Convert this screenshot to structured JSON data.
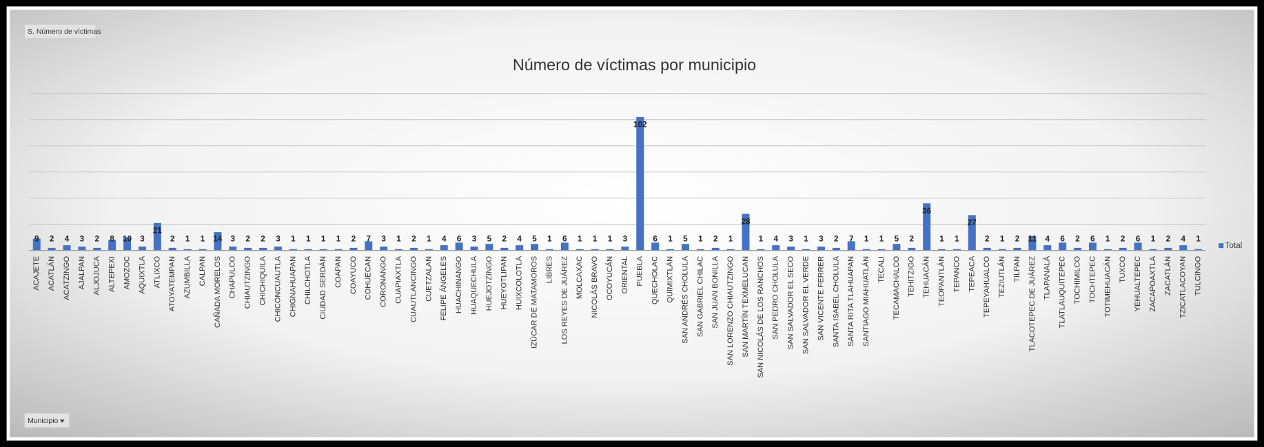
{
  "chart_data": {
    "type": "bar",
    "title": "Número de víctimas por municipio",
    "field_button": "S. Número de víctimas",
    "axis_button": "Municipio",
    "categories": [
      "ACAJETE",
      "ACATLÁN",
      "ACATZINGO",
      "AJALPAN",
      "ALJOJUCA",
      "ALTEPEXI",
      "AMOZOC",
      "AQUIXTLA",
      "ATLIXCO",
      "ATOYATEMPAN",
      "AZUMBILLA",
      "CALPAN",
      "CAÑADA MORELOS",
      "CHAPULCO",
      "CHIAUTZINGO",
      "CHICHIQUILA",
      "CHICONCUAUTLA",
      "CHIGNAHUAPAN",
      "CHILCHOTLA",
      "CIUDAD SERDÁN",
      "COAPAN",
      "COAYUCO",
      "COHUECAN",
      "CORONANGO",
      "CUAPIAXTLA",
      "CUAUTLANCINGO",
      "CUETZALAN",
      "FELIPE ÁNGELES",
      "HUACHINANGO",
      "HUAQUECHULA",
      "HUEJOTZINGO",
      "HUEYOTLIPAN",
      "HUIXCOLOTLA",
      "IZÚCAR DE MATAMOROS",
      "LIBRES",
      "LOS REYES DE JUÁREZ",
      "MOLCAXAC",
      "NICOLÁS BRAVO",
      "OCOYUCÁN",
      "ORIENTAL",
      "PUEBLA",
      "QUECHOLAC",
      "QUIMIXTLÁN",
      "SAN ANDRÉS CHOLULA",
      "SAN GABRIEL CHILAC",
      "SAN JUAN BONILLA",
      "SAN LORENZO CHIAUTZINGO",
      "SAN MARTÍN TEXMELUCAN",
      "SAN NICOLÁS DE LOS RANCHOS",
      "SAN PEDRO CHOLULA",
      "SAN SALVADOR EL SECO",
      "SAN SALVADOR EL VERDE",
      "SAN VICENTE FERRER",
      "SANTA ISABEL CHOLULA",
      "SANTA RITA TLAHUAPAN",
      "SANTIAGO MIAHUATLÁN",
      "TECALI",
      "TECAMACHALCO",
      "TEHITZIGO",
      "TEHUACÁN",
      "TEOPANTLÁN",
      "TEPANCO",
      "TEPEACA",
      "TEPEYAHUALCO",
      "TEZIUTLÁN",
      "TILPAN",
      "TLACOTEPEC DE JUÁREZ",
      "TLAPANALÁ",
      "TLATLAUQUITEPEC",
      "TOCHIMILCO",
      "TOCHTEPEC",
      "TOTIMEHUACÁN",
      "TUXCO",
      "YEHUALTEPEC",
      "ZACAPOAXTLA",
      "ZACATLÁN",
      "TZICATLACOYAN",
      "TULCINGO"
    ],
    "series": [
      {
        "name": "Total",
        "color": "#4472c4",
        "values": [
          9,
          2,
          4,
          3,
          2,
          8,
          10,
          3,
          21,
          2,
          1,
          1,
          14,
          3,
          2,
          2,
          3,
          1,
          1,
          1,
          1,
          2,
          7,
          3,
          1,
          2,
          1,
          4,
          6,
          3,
          5,
          2,
          4,
          5,
          1,
          6,
          1,
          1,
          1,
          3,
          102,
          6,
          1,
          5,
          1,
          2,
          1,
          28,
          1,
          4,
          3,
          1,
          3,
          2,
          7,
          1,
          1,
          5,
          2,
          36,
          1,
          1,
          27,
          2,
          1,
          2,
          11,
          4,
          6,
          2,
          6,
          1,
          2,
          6,
          1,
          2,
          4,
          1
        ]
      }
    ],
    "ylim": [
      0,
      120
    ],
    "yticks": [
      0,
      20,
      40,
      60,
      80,
      100,
      120
    ],
    "grid": true,
    "legend": "right"
  }
}
